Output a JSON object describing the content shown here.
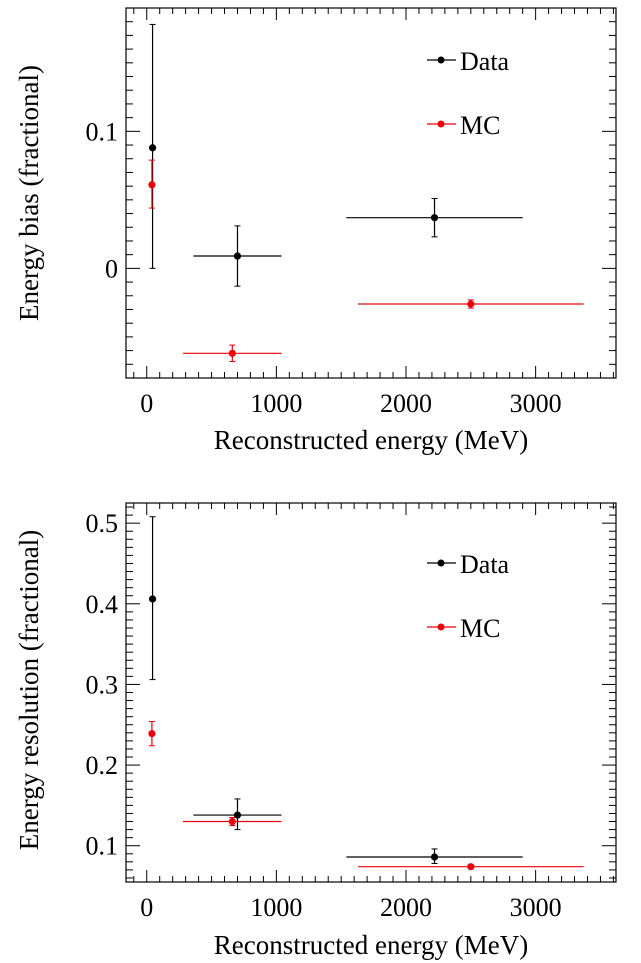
{
  "chart_data": [
    {
      "type": "scatter",
      "xlabel": "Reconstructed energy (MeV)",
      "ylabel": "Energy bias (fractional)",
      "xlim": [
        -160,
        3620
      ],
      "ylim": [
        -0.08,
        0.19
      ],
      "x_ticks": [
        0,
        1000,
        2000,
        3000
      ],
      "x_tick_labels": [
        "0",
        "1000",
        "2000",
        "3000"
      ],
      "y_ticks": [
        0,
        0.1
      ],
      "y_tick_labels": [
        "0",
        "0.1"
      ],
      "legend_position": "top-right",
      "series": [
        {
          "name": "Data",
          "color": "#000000",
          "points": [
            {
              "x": 45,
              "y": 0.088,
              "xerr_low": 0,
              "xerr_high": 0,
              "yerr_low": 0.088,
              "yerr_high": 0.09
            },
            {
              "x": 700,
              "y": 0.009,
              "xerr_low": 340,
              "xerr_high": 340,
              "yerr_low": 0.022,
              "yerr_high": 0.022
            },
            {
              "x": 2220,
              "y": 0.037,
              "xerr_low": 680,
              "xerr_high": 680,
              "yerr_low": 0.014,
              "yerr_high": 0.014
            }
          ]
        },
        {
          "name": "MC",
          "color": "#e8000b",
          "points": [
            {
              "x": 40,
              "y": 0.061,
              "xerr_low": 0,
              "xerr_high": 0,
              "yerr_low": 0.017,
              "yerr_high": 0.018
            },
            {
              "x": 660,
              "y": -0.062,
              "xerr_low": 380,
              "xerr_high": 380,
              "yerr_low": 0.006,
              "yerr_high": 0.006
            },
            {
              "x": 2500,
              "y": -0.026,
              "xerr_low": 870,
              "xerr_high": 870,
              "yerr_low": 0.003,
              "yerr_high": 0.003
            }
          ]
        }
      ]
    },
    {
      "type": "scatter",
      "xlabel": "Reconstructed energy (MeV)",
      "ylabel": "Energy resolution (fractional)",
      "xlim": [
        -160,
        3620
      ],
      "ylim": [
        0.055,
        0.525
      ],
      "x_ticks": [
        0,
        1000,
        2000,
        3000
      ],
      "x_tick_labels": [
        "0",
        "1000",
        "2000",
        "3000"
      ],
      "y_ticks": [
        0.1,
        0.2,
        0.3,
        0.4,
        0.5
      ],
      "y_tick_labels": [
        "0.1",
        "0.2",
        "0.3",
        "0.4",
        "0.5"
      ],
      "legend_position": "top-right",
      "series": [
        {
          "name": "Data",
          "color": "#000000",
          "points": [
            {
              "x": 45,
              "y": 0.406,
              "xerr_low": 0,
              "xerr_high": 0,
              "yerr_low": 0.1,
              "yerr_high": 0.102
            },
            {
              "x": 700,
              "y": 0.138,
              "xerr_low": 340,
              "xerr_high": 340,
              "yerr_low": 0.018,
              "yerr_high": 0.02
            },
            {
              "x": 2220,
              "y": 0.086,
              "xerr_low": 680,
              "xerr_high": 680,
              "yerr_low": 0.008,
              "yerr_high": 0.01
            }
          ]
        },
        {
          "name": "MC",
          "color": "#e8000b",
          "points": [
            {
              "x": 40,
              "y": 0.239,
              "xerr_low": 0,
              "xerr_high": 0,
              "yerr_low": 0.015,
              "yerr_high": 0.015
            },
            {
              "x": 660,
              "y": 0.13,
              "xerr_low": 380,
              "xerr_high": 380,
              "yerr_low": 0.005,
              "yerr_high": 0.005
            },
            {
              "x": 2500,
              "y": 0.074,
              "xerr_low": 870,
              "xerr_high": 870,
              "yerr_low": 0.002,
              "yerr_high": 0.002
            }
          ]
        }
      ]
    }
  ]
}
